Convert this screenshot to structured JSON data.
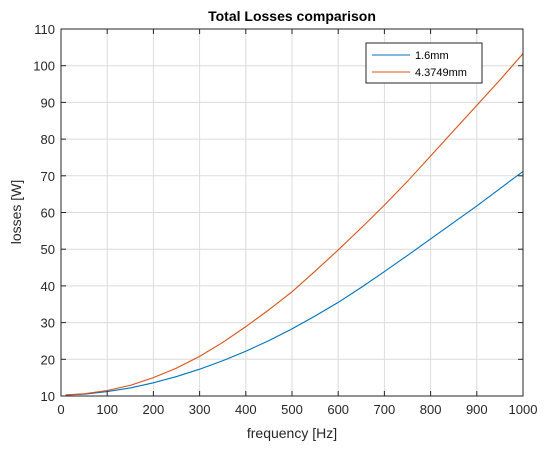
{
  "chart_data": {
    "type": "line",
    "title": "Total Losses comparison",
    "xlabel": "frequency [Hz]",
    "ylabel": "losses [W]",
    "xlim": [
      0,
      1000
    ],
    "ylim": [
      10,
      110
    ],
    "xticks": [
      "0",
      "100",
      "200",
      "300",
      "400",
      "500",
      "600",
      "700",
      "800",
      "900",
      "1000"
    ],
    "yticks": [
      "10",
      "20",
      "30",
      "40",
      "50",
      "60",
      "70",
      "80",
      "90",
      "100",
      "110"
    ],
    "grid": true,
    "legend_position": "top-right",
    "x": [
      10,
      50,
      100,
      150,
      200,
      250,
      300,
      350,
      400,
      450,
      500,
      550,
      600,
      650,
      700,
      750,
      800,
      850,
      900,
      950,
      1000
    ],
    "series": [
      {
        "name": "1.6mm",
        "color": "#0072BD",
        "values": [
          10.3,
          10.5,
          11.2,
          12.2,
          13.6,
          15.3,
          17.3,
          19.6,
          22.2,
          25.1,
          28.3,
          31.8,
          35.5,
          39.6,
          43.9,
          48.3,
          52.8,
          57.3,
          61.8,
          66.5,
          71.2
        ]
      },
      {
        "name": "4.3749mm",
        "color": "#D95319",
        "values": [
          10.3,
          10.6,
          11.5,
          12.9,
          15.0,
          17.6,
          20.8,
          24.6,
          28.9,
          33.5,
          38.4,
          44.0,
          49.8,
          55.8,
          62.0,
          68.5,
          75.4,
          82.3,
          89.2,
          96.1,
          103.3
        ]
      }
    ]
  }
}
